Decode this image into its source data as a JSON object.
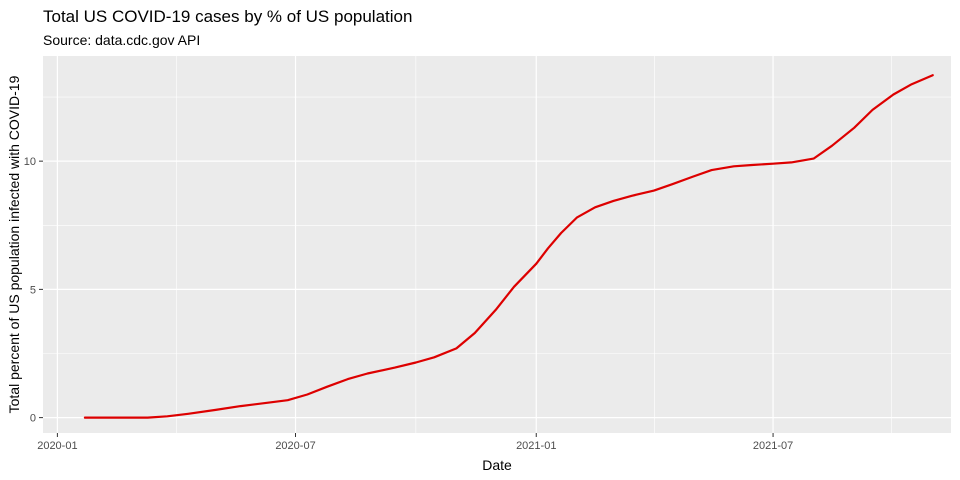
{
  "chart_data": {
    "type": "line",
    "title": "Total US COVID-19 cases by % of US population",
    "subtitle": "Source: data.cdc.gov API",
    "xlabel": "Date",
    "ylabel": "Total percent of US population infected with COVID-19",
    "x_tick_labels": [
      "2020-01",
      "2020-07",
      "2021-01",
      "2021-07"
    ],
    "y_tick_labels": [
      "0",
      "5",
      "10"
    ],
    "y_ticks": [
      0,
      5,
      10
    ],
    "ylim": [
      -0.6,
      14.1
    ],
    "xlim": [
      "2019-12-21",
      "2021-11-14"
    ],
    "grid": true,
    "legend": "none",
    "colors": {
      "line": "#dd0000",
      "panel": "#ebebeb",
      "grid": "#ffffff"
    },
    "series": [
      {
        "x": [
          "2020-01-22",
          "2020-02-15",
          "2020-03-10",
          "2020-03-25",
          "2020-04-10",
          "2020-05-01",
          "2020-05-20",
          "2020-06-10",
          "2020-06-25",
          "2020-07-10",
          "2020-07-25",
          "2020-08-10",
          "2020-08-25",
          "2020-09-15",
          "2020-10-01",
          "2020-10-15",
          "2020-11-01",
          "2020-11-15",
          "2020-12-01",
          "2020-12-15",
          "2021-01-01",
          "2021-01-10",
          "2021-01-20",
          "2021-02-01",
          "2021-02-15",
          "2021-03-01",
          "2021-03-15",
          "2021-04-01",
          "2021-04-15",
          "2021-05-01",
          "2021-05-15",
          "2021-06-01",
          "2021-06-15",
          "2021-07-01",
          "2021-07-15",
          "2021-08-01",
          "2021-08-15",
          "2021-09-01",
          "2021-09-15",
          "2021-10-01",
          "2021-10-15",
          "2021-10-31"
        ],
        "y": [
          0.0,
          0.0,
          0.0,
          0.05,
          0.15,
          0.3,
          0.45,
          0.58,
          0.68,
          0.9,
          1.2,
          1.5,
          1.72,
          1.95,
          2.15,
          2.35,
          2.7,
          3.3,
          4.2,
          5.1,
          6.0,
          6.6,
          7.2,
          7.8,
          8.2,
          8.45,
          8.65,
          8.85,
          9.1,
          9.4,
          9.65,
          9.8,
          9.85,
          9.9,
          9.95,
          10.1,
          10.6,
          11.3,
          12.0,
          12.6,
          13.0,
          13.35
        ]
      }
    ]
  }
}
